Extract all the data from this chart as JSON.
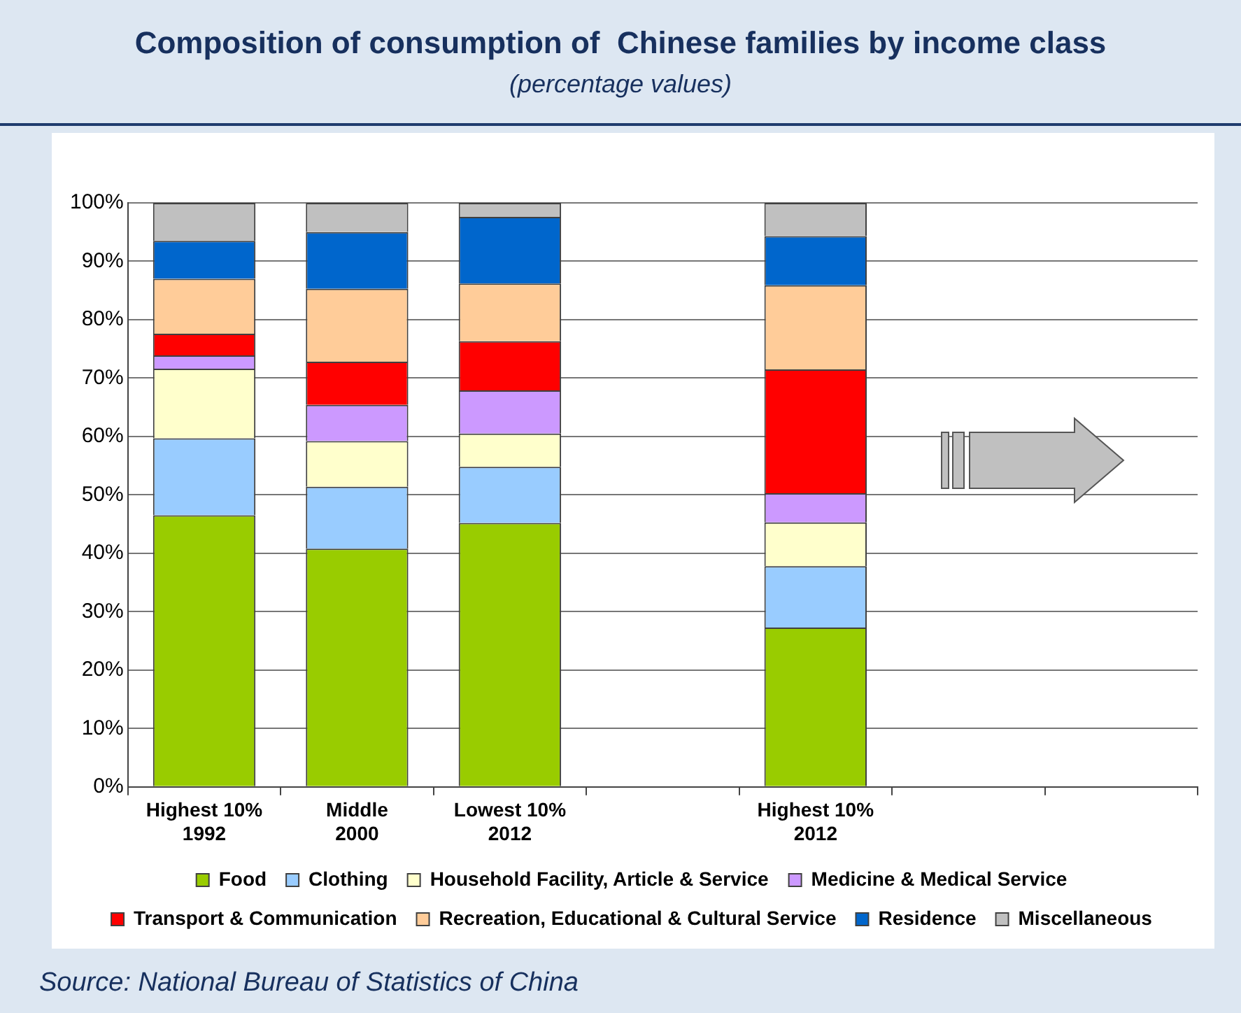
{
  "chart_data": {
    "type": "bar",
    "title": "Composition of consumption of  Chinese families by income class",
    "subtitle": "(percentage values)",
    "categories": [
      "Highest 10%\n1992",
      "Middle\n2000",
      "Lowest 10%\n2012",
      null,
      "Highest 10%\n2012",
      null,
      null
    ],
    "stacked": true,
    "series": [
      {
        "name": "Food",
        "color": "#99cc00",
        "values": [
          46.5,
          40.8,
          45.2,
          null,
          27.3,
          null,
          null
        ]
      },
      {
        "name": "Clothing",
        "color": "#99ccff",
        "values": [
          13.2,
          10.6,
          9.6,
          null,
          10.5,
          null,
          null
        ]
      },
      {
        "name": "Household Facility, Article & Service",
        "color": "#ffffcc",
        "values": [
          11.9,
          7.8,
          5.7,
          null,
          7.5,
          null,
          null
        ]
      },
      {
        "name": "Medicine & Medical Service",
        "color": "#cc99ff",
        "values": [
          2.3,
          6.2,
          7.4,
          null,
          5.0,
          null,
          null
        ]
      },
      {
        "name": "Transport & Communication",
        "color": "#ff0000",
        "values": [
          3.7,
          7.4,
          8.4,
          null,
          21.2,
          null,
          null
        ]
      },
      {
        "name": "Recreation, Educational & Cultural Service",
        "color": "#ffcc99",
        "values": [
          9.4,
          12.5,
          9.9,
          null,
          14.4,
          null,
          null
        ]
      },
      {
        "name": "Residence",
        "color": "#0066cc",
        "values": [
          6.5,
          9.7,
          11.4,
          null,
          8.4,
          null,
          null
        ]
      },
      {
        "name": "Miscellaneous",
        "color": "#c0c0c0",
        "values": [
          6.5,
          5.0,
          2.4,
          null,
          5.7,
          null,
          null
        ]
      }
    ],
    "ylim": [
      0,
      100
    ],
    "yticks": [
      {
        "value": 0,
        "label": "0%"
      },
      {
        "value": 10,
        "label": "10%"
      },
      {
        "value": 20,
        "label": "20%"
      },
      {
        "value": 30,
        "label": "30%"
      },
      {
        "value": 40,
        "label": "40%"
      },
      {
        "value": 50,
        "label": "50%"
      },
      {
        "value": 60,
        "label": "60%"
      },
      {
        "value": 70,
        "label": "70%"
      },
      {
        "value": 80,
        "label": "80%"
      },
      {
        "value": 90,
        "label": "90%"
      },
      {
        "value": 100,
        "label": "100%"
      }
    ],
    "grid": "y",
    "legend": "bottom",
    "annotations": [
      "Source: National Bureau of Statistics of China"
    ]
  }
}
